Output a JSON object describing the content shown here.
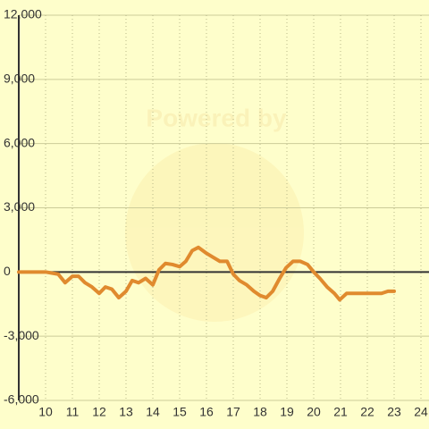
{
  "chart_data": {
    "type": "line",
    "watermark": "Powered by",
    "x": [
      9.0,
      10.0,
      10.47,
      10.73,
      11.0,
      11.23,
      11.47,
      11.73,
      12.0,
      12.23,
      12.47,
      12.73,
      13.0,
      13.23,
      13.47,
      13.73,
      14.0,
      14.23,
      14.47,
      14.73,
      15.0,
      15.23,
      15.47,
      15.7,
      15.97,
      16.23,
      16.5,
      16.77,
      17.0,
      17.23,
      17.5,
      17.77,
      18.0,
      18.23,
      18.47,
      18.73,
      18.97,
      19.23,
      19.5,
      19.77,
      20.0,
      20.23,
      20.5,
      20.77,
      20.97,
      21.23,
      21.5,
      21.97,
      22.53,
      22.77,
      23.0
    ],
    "series": [
      {
        "color": "#e08a2e",
        "values": [
          0,
          0,
          -100,
          -500,
          -200,
          -200,
          -500,
          -700,
          -1000,
          -700,
          -800,
          -1200,
          -900,
          -400,
          -500,
          -300,
          -600,
          100,
          400,
          350,
          250,
          500,
          1000,
          1150,
          900,
          700,
          500,
          500,
          -100,
          -400,
          -600,
          -900,
          -1100,
          -1200,
          -900,
          -300,
          200,
          500,
          500,
          350,
          0,
          -300,
          -700,
          -1000,
          -1300,
          -1000,
          -1000,
          -1000,
          -1000,
          -900,
          -900
        ]
      }
    ],
    "xlim": [
      9,
      24.3
    ],
    "xticks": [
      10,
      11,
      12,
      13,
      14,
      15,
      16,
      17,
      18,
      19,
      20,
      21,
      22,
      23,
      24
    ],
    "ylim": [
      -6000,
      12000
    ],
    "yticks": [
      {
        "value": -6000,
        "label": "-6,000"
      },
      {
        "value": -3000,
        "label": "-3,000"
      },
      0,
      {
        "value": 3000,
        "label": "3,000"
      },
      {
        "value": 6000,
        "label": "6,000"
      },
      {
        "value": 9000,
        "label": "9,000"
      },
      {
        "value": 12000,
        "label": "12,000"
      }
    ],
    "grid": true
  }
}
